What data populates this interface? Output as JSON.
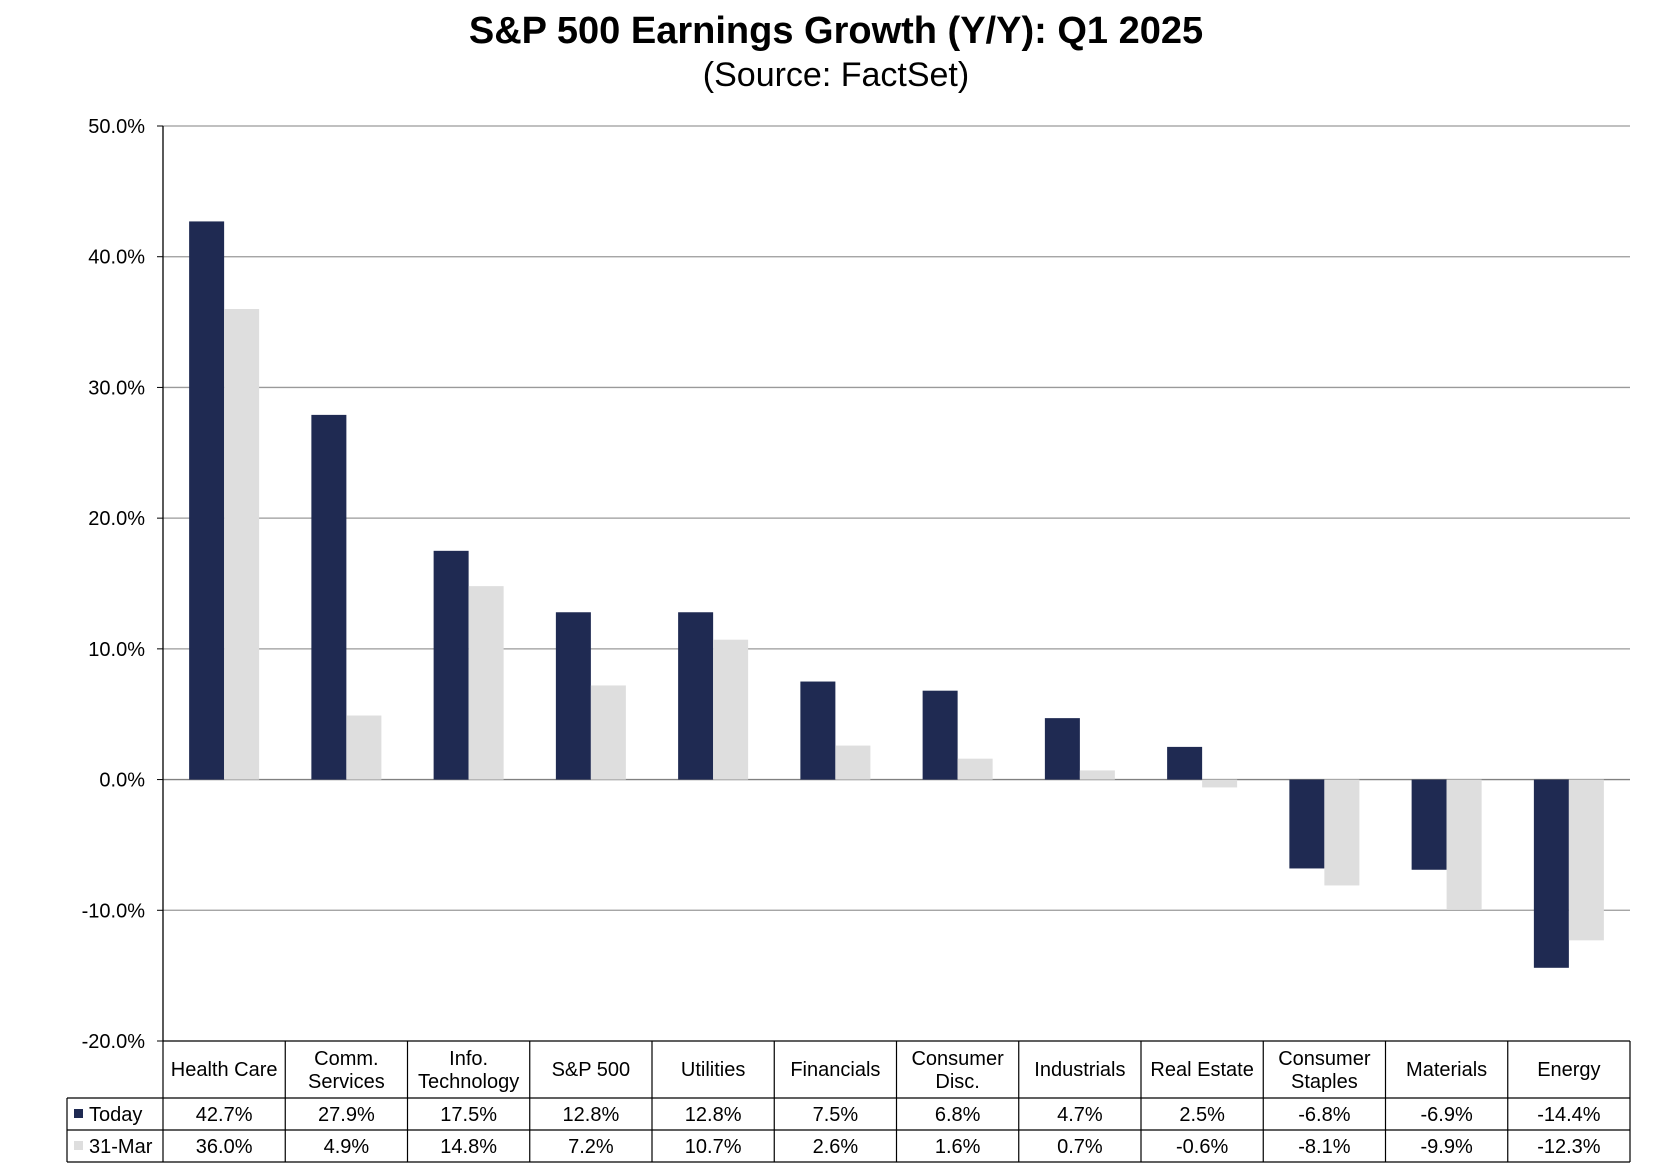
{
  "chart_data": {
    "type": "bar",
    "title": "S&P 500 Earnings Growth (Y/Y): Q1 2025",
    "subtitle": "(Source: FactSet)",
    "categories": [
      [
        "Health Care"
      ],
      [
        "Comm.",
        "Services"
      ],
      [
        "Info.",
        "Technology"
      ],
      [
        "S&P 500"
      ],
      [
        "Utilities"
      ],
      [
        "Financials"
      ],
      [
        "Consumer",
        "Disc."
      ],
      [
        "Industrials"
      ],
      [
        "Real Estate"
      ],
      [
        "Consumer",
        "Staples"
      ],
      [
        "Materials"
      ],
      [
        "Energy"
      ]
    ],
    "series": [
      {
        "name": "Today",
        "color": "#1f2a52",
        "values": [
          42.7,
          27.9,
          17.5,
          12.8,
          12.8,
          7.5,
          6.8,
          4.7,
          2.5,
          -6.8,
          -6.9,
          -14.4
        ],
        "labels": [
          "42.7%",
          "27.9%",
          "17.5%",
          "12.8%",
          "12.8%",
          "7.5%",
          "6.8%",
          "4.7%",
          "2.5%",
          "-6.8%",
          "-6.9%",
          "-14.4%"
        ]
      },
      {
        "name": "31-Mar",
        "color": "#dedede",
        "values": [
          36.0,
          4.9,
          14.8,
          7.2,
          10.7,
          2.6,
          1.6,
          0.7,
          -0.6,
          -8.1,
          -9.9,
          -12.3
        ],
        "labels": [
          "36.0%",
          "4.9%",
          "14.8%",
          "7.2%",
          "10.7%",
          "2.6%",
          "1.6%",
          "0.7%",
          "-0.6%",
          "-8.1%",
          "-9.9%",
          "-12.3%"
        ]
      }
    ],
    "ylim": [
      -20,
      50
    ],
    "yticks": [
      "50.0%",
      "40.0%",
      "30.0%",
      "20.0%",
      "10.0%",
      "0.0%",
      "-10.0%",
      "-20.0%"
    ],
    "ytick_values": [
      50,
      40,
      30,
      20,
      10,
      0,
      -10,
      -20
    ],
    "grid": true,
    "legend": "data-table-below"
  }
}
